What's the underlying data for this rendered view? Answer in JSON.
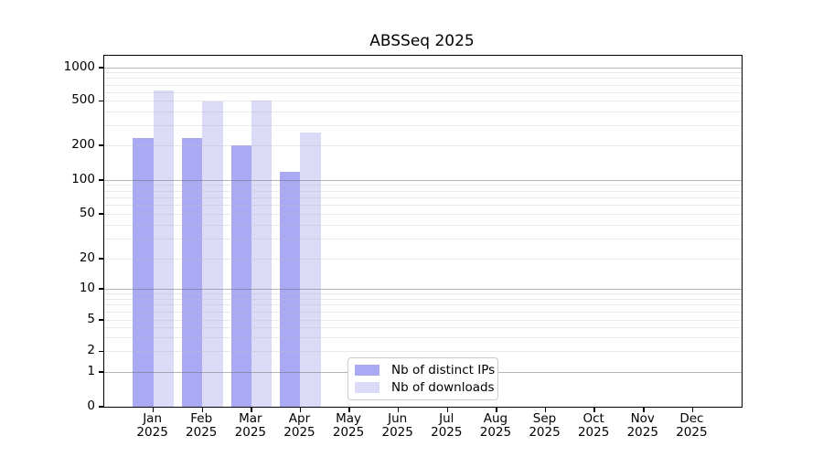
{
  "chart_data": {
    "type": "bar",
    "title": "ABSSeq 2025",
    "x_axis": {
      "months": [
        "Jan",
        "Feb",
        "Mar",
        "Apr",
        "May",
        "Jun",
        "Jul",
        "Aug",
        "Sep",
        "Oct",
        "Nov",
        "Dec"
      ],
      "year_label": "2025"
    },
    "y_axis": {
      "scale": "pseudo-log",
      "range": [
        0,
        1260
      ],
      "tick_values": [
        0,
        1,
        2,
        5,
        10,
        20,
        50,
        100,
        200,
        500,
        1000
      ],
      "tick_labels": [
        "0",
        "1",
        "2",
        "5",
        "10",
        "20",
        "50",
        "100",
        "200",
        "500",
        "1000"
      ],
      "major_gridlines": [
        1,
        10,
        100,
        1000
      ],
      "minor_gridlines": [
        2,
        3,
        4,
        5,
        6,
        7,
        8,
        9,
        20,
        30,
        40,
        50,
        60,
        70,
        80,
        90,
        200,
        300,
        400,
        500,
        600,
        700,
        800,
        900
      ]
    },
    "grid": "horizontal",
    "legend_position": "inside-bottom-center",
    "series": [
      {
        "name": "Nb of distinct IPs",
        "color": "#a9a9f4",
        "values": [
          230,
          231,
          199,
          118,
          null,
          null,
          null,
          null,
          null,
          null,
          null,
          null
        ]
      },
      {
        "name": "Nb of downloads",
        "color": "#dbdbf8",
        "values": [
          617,
          494,
          500,
          260,
          null,
          null,
          null,
          null,
          null,
          null,
          null,
          null
        ]
      }
    ]
  }
}
